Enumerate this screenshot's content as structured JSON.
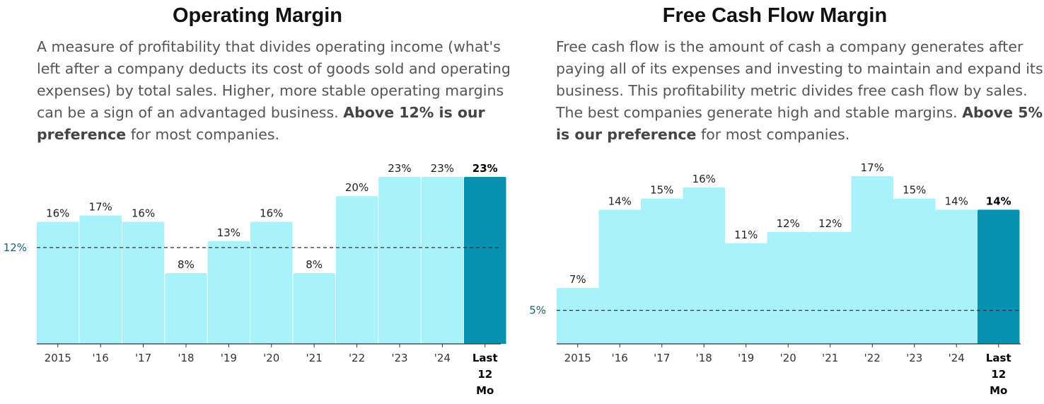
{
  "chart_data": [
    {
      "type": "bar",
      "title": "Operating Margin",
      "description": {
        "text": "A measure of profitability that divides operating income (what's left after a company deducts its cost of goods sold and operating expenses) by total sales. Higher, more stable operating margins can be a sign of an advantaged business.",
        "emphasis": "Above 12% is our preference",
        "tail": "for most companies."
      },
      "categories": [
        "2015",
        "'16",
        "'17",
        "'18",
        "'19",
        "'20",
        "'21",
        "'22",
        "'23",
        "'24",
        "Last 12 Mo"
      ],
      "values": [
        16,
        17,
        16,
        8,
        13,
        16,
        8,
        20,
        23,
        23,
        23
      ],
      "value_labels": [
        "16%",
        "17%",
        "16%",
        "8%",
        "13%",
        "16%",
        "8%",
        "20%",
        "23%",
        "23%",
        "23%"
      ],
      "reference_line": {
        "value": 12,
        "label": "12%"
      },
      "ylim": [
        -3,
        23
      ],
      "highlight_last": true,
      "xlabel": "",
      "ylabel": "",
      "grid": false,
      "colors": {
        "bar": "#a8f2fb",
        "highlight": "#0890b0",
        "reference": "#1a5f75"
      }
    },
    {
      "type": "bar",
      "title": "Free Cash Flow Margin",
      "description": {
        "text": "Free cash flow is the amount of cash a company generates after paying all of its expenses and investing to maintain and expand its business. This profitability metric divides free cash flow by sales. The best companies generate high and stable margins.",
        "emphasis": "Above 5% is our preference",
        "tail": "for most companies."
      },
      "categories": [
        "2015",
        "'16",
        "'17",
        "'18",
        "'19",
        "'20",
        "'21",
        "'22",
        "'23",
        "'24",
        "Last 12 Mo"
      ],
      "values": [
        7,
        14,
        15,
        16,
        11,
        12,
        12,
        17,
        15,
        14,
        14
      ],
      "value_labels": [
        "7%",
        "14%",
        "15%",
        "16%",
        "11%",
        "12%",
        "12%",
        "17%",
        "15%",
        "14%",
        "14%"
      ],
      "reference_line": {
        "value": 5,
        "label": "5%"
      },
      "ylim": [
        2,
        17
      ],
      "highlight_last": true,
      "xlabel": "",
      "ylabel": "",
      "grid": false,
      "colors": {
        "bar": "#a8f2fb",
        "highlight": "#0890b0",
        "reference": "#1a5f75"
      }
    }
  ]
}
